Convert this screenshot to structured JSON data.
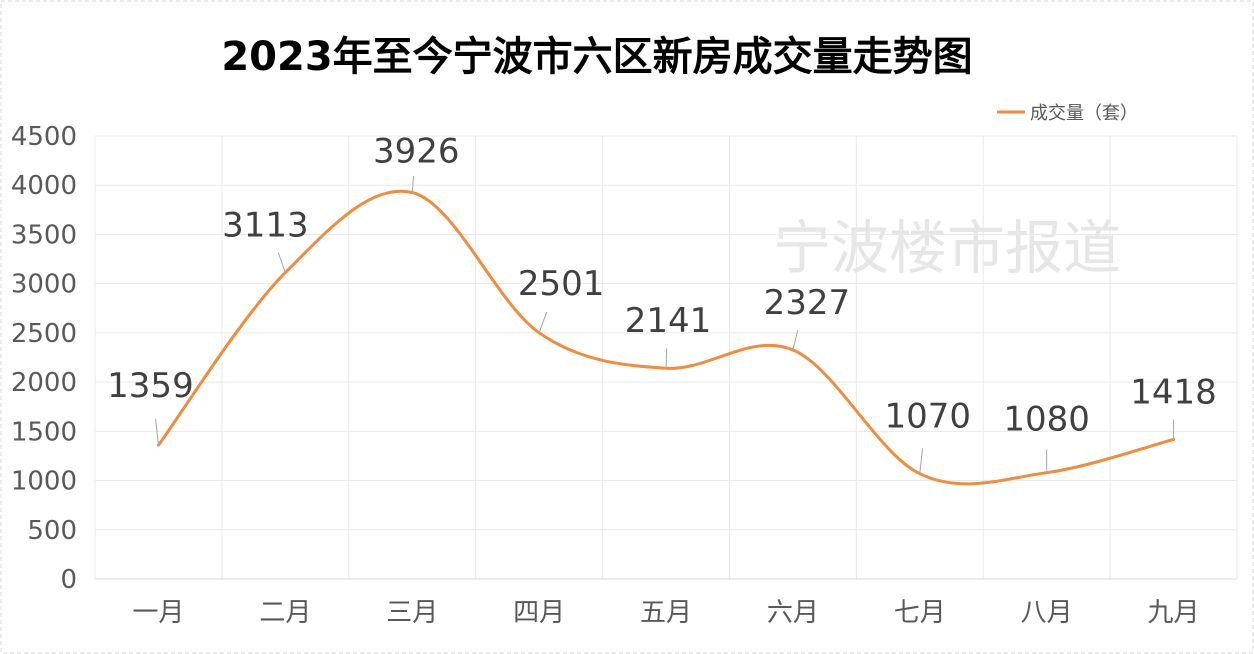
{
  "chart_data": {
    "type": "line",
    "title": "2023年至今宁波市六区新房成交量走势图",
    "categories": [
      "一月",
      "二月",
      "三月",
      "四月",
      "五月",
      "六月",
      "七月",
      "八月",
      "九月"
    ],
    "series": [
      {
        "name": "成交量（套）",
        "values": [
          1359,
          3113,
          3926,
          2501,
          2141,
          2327,
          1070,
          1080,
          1418
        ],
        "color": "#f28c3a",
        "smooth": true,
        "data_labels": true
      }
    ],
    "ylim": [
      0,
      4500
    ],
    "yticks": [
      0,
      500,
      1000,
      1500,
      2000,
      2500,
      3000,
      3500,
      4000,
      4500
    ],
    "grid": true,
    "legend_position": "top-right",
    "watermark": "宁波楼市报道",
    "gridline_color": "#e9e9e9",
    "border_color": "#d9d9d9"
  }
}
